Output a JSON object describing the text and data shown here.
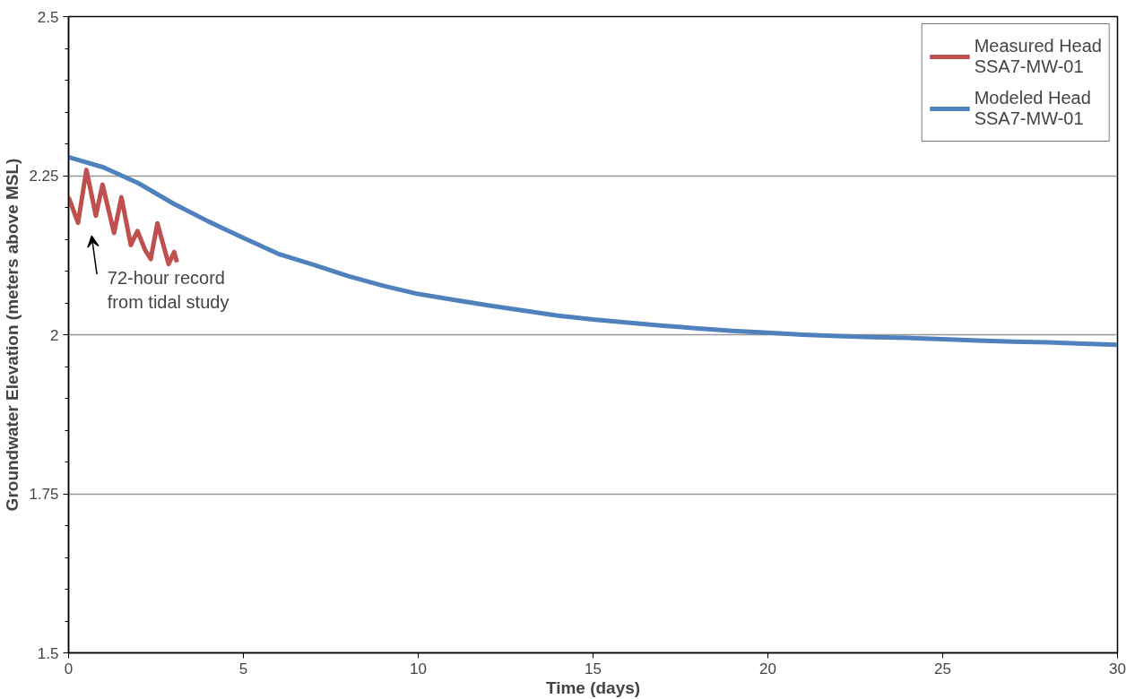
{
  "chart_data": {
    "type": "line",
    "xlabel": "Time (days)",
    "ylabel": "Groundwater Elevation (meters above MSL)",
    "xlim": [
      0,
      30
    ],
    "xticks": [
      0,
      5,
      10,
      15,
      20,
      25,
      30
    ],
    "ylim": [
      1.5,
      2.5
    ],
    "yticks": [
      1.5,
      1.75,
      2,
      2.25,
      2.5
    ],
    "grid": "y",
    "legend": "top right",
    "line_style": "solid",
    "marker": "none",
    "annotations": [
      "72-hour record\nfrom tidal study"
    ],
    "series": [
      {
        "name": "Measured Head\nSSA7-MW-01",
        "color": "#c0504d",
        "x": [
          0,
          0.27,
          0.51,
          0.78,
          0.97,
          1.3,
          1.51,
          1.78,
          1.97,
          2.19,
          2.35,
          2.54,
          2.86,
          3.02,
          3.1
        ],
        "values": [
          2.216,
          2.176,
          2.259,
          2.187,
          2.236,
          2.16,
          2.216,
          2.141,
          2.163,
          2.133,
          2.119,
          2.175,
          2.111,
          2.13,
          2.114
        ]
      },
      {
        "name": "Modeled Head\nSSA7-MW-01",
        "color": "#4f81bd",
        "x": [
          0,
          1,
          2,
          3,
          4,
          5,
          6,
          7,
          8,
          9,
          10,
          11,
          12,
          13,
          14,
          15,
          16,
          17,
          18,
          19,
          20,
          21,
          22,
          23,
          24,
          25,
          26,
          27,
          28,
          29,
          30
        ],
        "values": [
          2.279,
          2.263,
          2.238,
          2.206,
          2.178,
          2.152,
          2.127,
          2.11,
          2.092,
          2.077,
          2.064,
          2.055,
          2.046,
          2.038,
          2.03,
          2.024,
          2.019,
          2.014,
          2.01,
          2.006,
          2.003,
          2.0,
          1.998,
          1.996,
          1.995,
          1.993,
          1.991,
          1.989,
          1.988,
          1.986,
          1.984
        ]
      }
    ]
  }
}
